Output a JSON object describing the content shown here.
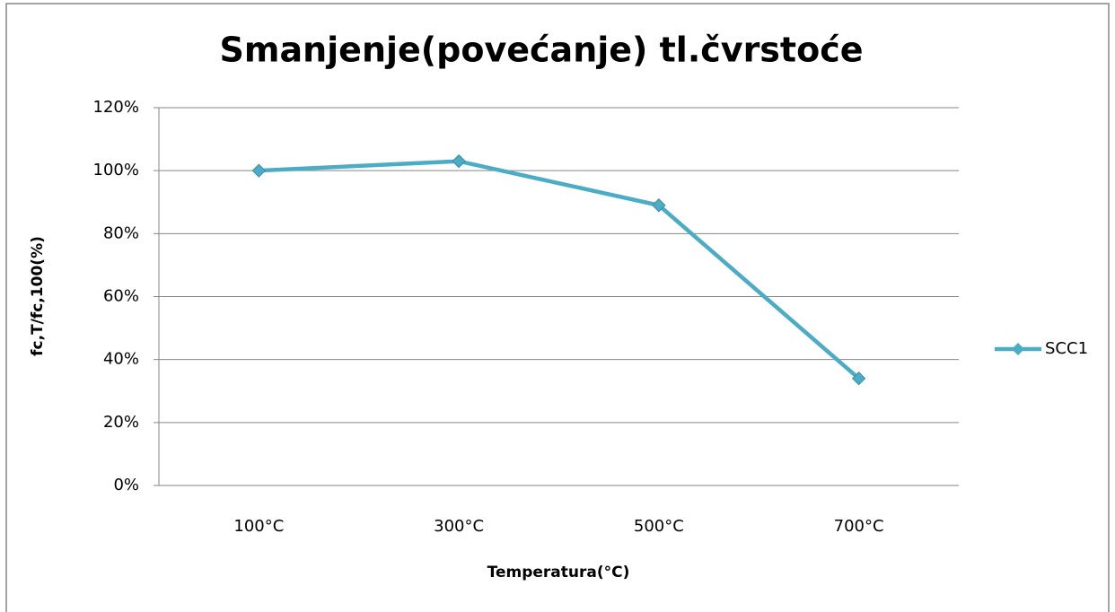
{
  "chart_data": {
    "type": "line",
    "title": "Smanjenje(povećanje) tl.čvrstoće",
    "x_label": "Temperatura(°C)",
    "y_label": "fc,T/fc,100(%)",
    "categories": [
      "100°C",
      "300°C",
      "500°C",
      "700°C"
    ],
    "series": [
      {
        "name": "SCC1",
        "color": "#4bacc6",
        "values": [
          100,
          103,
          89,
          34
        ]
      }
    ],
    "ylim": [
      0,
      120
    ],
    "yticks": [
      {
        "value": 0,
        "label": "0%"
      },
      {
        "value": 20,
        "label": "20%"
      },
      {
        "value": 40,
        "label": "40%"
      },
      {
        "value": 60,
        "label": "60%"
      },
      {
        "value": 80,
        "label": "80%"
      },
      {
        "value": 100,
        "label": "100%"
      },
      {
        "value": 120,
        "label": "120%"
      }
    ],
    "grid": true,
    "legend": "right"
  }
}
